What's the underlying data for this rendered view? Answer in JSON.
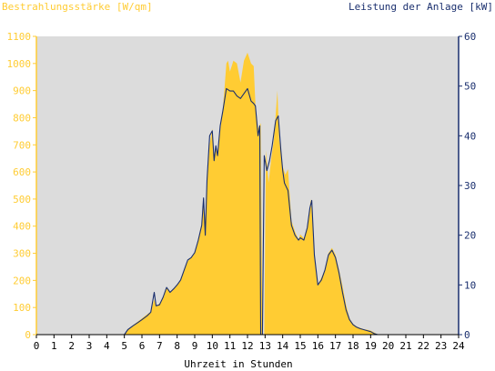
{
  "chart_data": {
    "type": "area",
    "y_left_label": "Bestrahlungsstärke [W/qm]",
    "y_right_label": "Leistung der Anlage [kW]",
    "xlabel": "Uhrzeit in Stunden",
    "xlim": [
      0,
      24
    ],
    "ylim_left": [
      0,
      1100
    ],
    "ylim_right": [
      0,
      60
    ],
    "x_ticks": [
      "0",
      "1",
      "2",
      "3",
      "4",
      "5",
      "6",
      "7",
      "8",
      "9",
      "10",
      "11",
      "12",
      "13",
      "14",
      "15",
      "16",
      "17",
      "18",
      "19",
      "20",
      "21",
      "22",
      "23",
      "24"
    ],
    "y_left_ticks": [
      "0",
      "100",
      "200",
      "300",
      "400",
      "500",
      "600",
      "700",
      "800",
      "900",
      "1000",
      "1100"
    ],
    "y_right_ticks": [
      "0",
      "10",
      "20",
      "30",
      "40",
      "50",
      "60"
    ],
    "grid": false,
    "colors": {
      "irradiance": "#ffcc33",
      "power": "#1a2f6e",
      "plot_bg": "#dcdcdc",
      "left_axis_text": "#ffcc33",
      "right_axis_text": "#1a2f6e"
    },
    "series": [
      {
        "name": "Bestrahlungsstärke [W/qm]",
        "axis": "left",
        "style": "area",
        "points": [
          [
            0,
            0
          ],
          [
            5.0,
            0
          ],
          [
            5.2,
            20
          ],
          [
            5.5,
            35
          ],
          [
            5.8,
            50
          ],
          [
            6.0,
            60
          ],
          [
            6.3,
            75
          ],
          [
            6.5,
            85
          ],
          [
            6.7,
            130
          ],
          [
            6.8,
            105
          ],
          [
            7.0,
            115
          ],
          [
            7.2,
            140
          ],
          [
            7.4,
            175
          ],
          [
            7.6,
            155
          ],
          [
            7.8,
            170
          ],
          [
            8.0,
            185
          ],
          [
            8.2,
            200
          ],
          [
            8.4,
            235
          ],
          [
            8.6,
            270
          ],
          [
            8.8,
            285
          ],
          [
            9.0,
            300
          ],
          [
            9.2,
            355
          ],
          [
            9.4,
            410
          ],
          [
            9.5,
            485
          ],
          [
            9.6,
            420
          ],
          [
            9.7,
            560
          ],
          [
            9.85,
            700
          ],
          [
            10.0,
            760
          ],
          [
            10.1,
            650
          ],
          [
            10.2,
            700
          ],
          [
            10.3,
            660
          ],
          [
            10.45,
            750
          ],
          [
            10.6,
            830
          ],
          [
            10.8,
            1000
          ],
          [
            10.9,
            1010
          ],
          [
            11.0,
            970
          ],
          [
            11.2,
            1010
          ],
          [
            11.4,
            1000
          ],
          [
            11.6,
            930
          ],
          [
            11.8,
            1010
          ],
          [
            12.0,
            1040
          ],
          [
            12.2,
            1000
          ],
          [
            12.35,
            990
          ],
          [
            12.45,
            850
          ],
          [
            12.6,
            760
          ],
          [
            12.75,
            780
          ],
          [
            12.85,
            0
          ],
          [
            12.95,
            0
          ],
          [
            13.05,
            680
          ],
          [
            13.2,
            560
          ],
          [
            13.35,
            650
          ],
          [
            13.5,
            720
          ],
          [
            13.7,
            900
          ],
          [
            13.8,
            720
          ],
          [
            14.0,
            620
          ],
          [
            14.15,
            590
          ],
          [
            14.3,
            610
          ],
          [
            14.5,
            420
          ],
          [
            14.7,
            380
          ],
          [
            14.9,
            350
          ],
          [
            15.0,
            370
          ],
          [
            15.2,
            355
          ],
          [
            15.4,
            390
          ],
          [
            15.6,
            500
          ],
          [
            15.7,
            420
          ],
          [
            15.8,
            300
          ],
          [
            16.0,
            185
          ],
          [
            16.2,
            210
          ],
          [
            16.4,
            240
          ],
          [
            16.6,
            300
          ],
          [
            16.8,
            320
          ],
          [
            17.0,
            295
          ],
          [
            17.2,
            240
          ],
          [
            17.4,
            180
          ],
          [
            17.6,
            110
          ],
          [
            17.8,
            60
          ],
          [
            18.0,
            40
          ],
          [
            18.2,
            30
          ],
          [
            18.4,
            25
          ],
          [
            18.6,
            20
          ],
          [
            18.8,
            18
          ],
          [
            19.0,
            15
          ],
          [
            19.2,
            8
          ],
          [
            19.4,
            0
          ],
          [
            24,
            0
          ]
        ]
      },
      {
        "name": "Leistung der Anlage [kW]",
        "axis": "right",
        "style": "line",
        "points": [
          [
            0,
            0
          ],
          [
            5.0,
            0
          ],
          [
            5.2,
            1
          ],
          [
            5.5,
            1.8
          ],
          [
            5.8,
            2.5
          ],
          [
            6.0,
            3
          ],
          [
            6.3,
            3.8
          ],
          [
            6.5,
            4.5
          ],
          [
            6.7,
            8.5
          ],
          [
            6.8,
            5.8
          ],
          [
            7.0,
            6
          ],
          [
            7.2,
            7.5
          ],
          [
            7.4,
            9.5
          ],
          [
            7.6,
            8.5
          ],
          [
            7.8,
            9.2
          ],
          [
            8.0,
            10
          ],
          [
            8.2,
            11
          ],
          [
            8.4,
            13
          ],
          [
            8.6,
            15
          ],
          [
            8.8,
            15.5
          ],
          [
            9.0,
            16.5
          ],
          [
            9.2,
            19
          ],
          [
            9.4,
            22
          ],
          [
            9.5,
            27.5
          ],
          [
            9.6,
            20
          ],
          [
            9.7,
            31
          ],
          [
            9.85,
            40
          ],
          [
            10.0,
            41
          ],
          [
            10.1,
            35
          ],
          [
            10.2,
            38
          ],
          [
            10.3,
            36
          ],
          [
            10.45,
            42
          ],
          [
            10.6,
            45
          ],
          [
            10.8,
            49.5
          ],
          [
            11.0,
            49
          ],
          [
            11.2,
            49
          ],
          [
            11.4,
            48
          ],
          [
            11.6,
            47.5
          ],
          [
            11.8,
            48.5
          ],
          [
            12.0,
            49.5
          ],
          [
            12.2,
            47
          ],
          [
            12.35,
            46.5
          ],
          [
            12.45,
            46
          ],
          [
            12.6,
            40
          ],
          [
            12.7,
            42
          ],
          [
            12.75,
            0
          ],
          [
            12.85,
            0
          ],
          [
            12.95,
            36
          ],
          [
            13.1,
            33
          ],
          [
            13.25,
            35
          ],
          [
            13.4,
            38
          ],
          [
            13.6,
            43
          ],
          [
            13.75,
            44
          ],
          [
            13.9,
            37
          ],
          [
            14.0,
            33
          ],
          [
            14.1,
            30.5
          ],
          [
            14.3,
            29
          ],
          [
            14.5,
            22
          ],
          [
            14.7,
            20
          ],
          [
            14.9,
            19
          ],
          [
            15.0,
            19.5
          ],
          [
            15.2,
            19
          ],
          [
            15.4,
            21.5
          ],
          [
            15.55,
            25.5
          ],
          [
            15.65,
            27
          ],
          [
            15.8,
            16
          ],
          [
            16.0,
            10
          ],
          [
            16.2,
            11
          ],
          [
            16.4,
            13
          ],
          [
            16.6,
            16
          ],
          [
            16.8,
            17
          ],
          [
            17.0,
            15.5
          ],
          [
            17.2,
            12.5
          ],
          [
            17.4,
            8.5
          ],
          [
            17.6,
            5
          ],
          [
            17.8,
            3
          ],
          [
            18.0,
            2
          ],
          [
            18.2,
            1.5
          ],
          [
            18.4,
            1.2
          ],
          [
            18.6,
            1
          ],
          [
            18.8,
            0.8
          ],
          [
            19.0,
            0.6
          ],
          [
            19.2,
            0.2
          ],
          [
            19.4,
            0
          ],
          [
            24,
            0
          ]
        ]
      }
    ]
  }
}
